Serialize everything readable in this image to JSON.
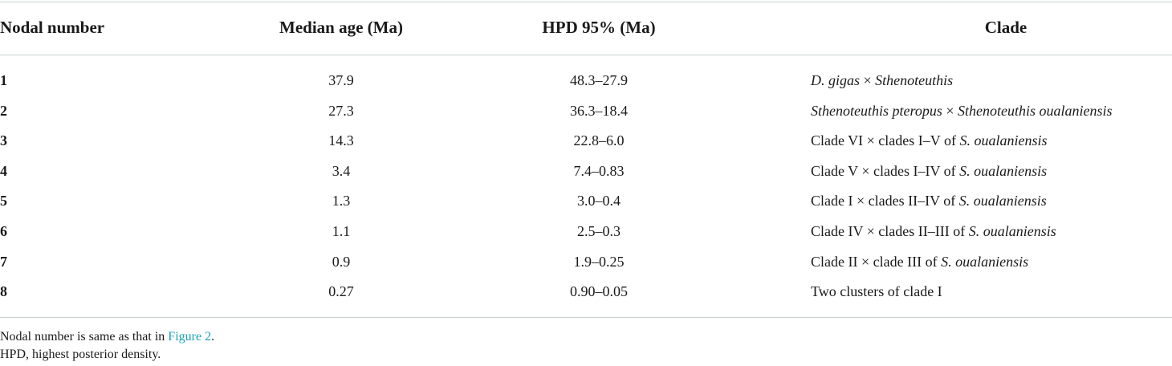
{
  "table": {
    "columns": [
      "Nodal number",
      "Median age (Ma)",
      "HPD 95% (Ma)",
      "Clade"
    ],
    "rows": [
      {
        "node": "1",
        "median": "37.9",
        "hpd": "48.3–27.9",
        "clade": [
          {
            "text": "D. gigas",
            "italic": true
          },
          {
            "text": " × "
          },
          {
            "text": "Sthenoteuthis",
            "italic": true
          }
        ]
      },
      {
        "node": "2",
        "median": "27.3",
        "hpd": "36.3–18.4",
        "clade": [
          {
            "text": "Sthenoteuthis pteropus",
            "italic": true
          },
          {
            "text": " × "
          },
          {
            "text": "Sthenoteuthis oualaniensis",
            "italic": true
          }
        ]
      },
      {
        "node": "3",
        "median": "14.3",
        "hpd": "22.8–6.0",
        "clade": [
          {
            "text": "Clade VI × clades I–V of "
          },
          {
            "text": "S. oualaniensis",
            "italic": true
          }
        ]
      },
      {
        "node": "4",
        "median": "3.4",
        "hpd": "7.4–0.83",
        "clade": [
          {
            "text": "Clade V × clades I–IV of "
          },
          {
            "text": "S. oualaniensis",
            "italic": true
          }
        ]
      },
      {
        "node": "5",
        "median": "1.3",
        "hpd": "3.0–0.4",
        "clade": [
          {
            "text": "Clade I × clades II–IV of "
          },
          {
            "text": "S. oualaniensis",
            "italic": true
          }
        ]
      },
      {
        "node": "6",
        "median": "1.1",
        "hpd": "2.5–0.3",
        "clade": [
          {
            "text": "Clade IV × clades II–III of "
          },
          {
            "text": "S. oualaniensis",
            "italic": true
          }
        ]
      },
      {
        "node": "7",
        "median": "0.9",
        "hpd": "1.9–0.25",
        "clade": [
          {
            "text": "Clade II × clade III of "
          },
          {
            "text": "S. oualaniensis",
            "italic": true
          }
        ]
      },
      {
        "node": "8",
        "median": "0.27",
        "hpd": "0.90–0.05",
        "clade": [
          {
            "text": "Two clusters of clade I"
          }
        ]
      }
    ]
  },
  "footnotes": [
    [
      {
        "text": "Nodal number is same as that in "
      },
      {
        "text": "Figure 2",
        "link": true
      },
      {
        "text": "."
      }
    ],
    [
      {
        "text": "HPD, highest posterior density."
      }
    ]
  ]
}
